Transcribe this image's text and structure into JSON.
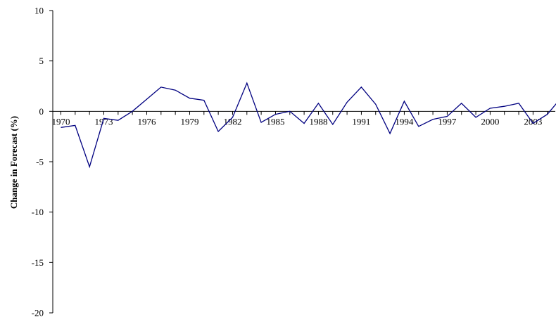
{
  "chart_data": {
    "type": "line",
    "title": "",
    "xlabel": "",
    "ylabel": "Change in Forecast (%)",
    "ylim": [
      -20,
      10
    ],
    "yticks": [
      10,
      5,
      0,
      -5,
      -10,
      -15,
      -20
    ],
    "xlim": [
      1970,
      2005
    ],
    "xtick_labels": [
      "1970",
      "1973",
      "1976",
      "1979",
      "1982",
      "1985",
      "1988",
      "1991",
      "1994",
      "1997",
      "2000",
      "2003"
    ],
    "grid": false,
    "series": [
      {
        "color": "#000080",
        "x": [
          1970,
          1971,
          1972,
          1973,
          1974,
          1975,
          1976,
          1977,
          1978,
          1979,
          1980,
          1981,
          1982,
          1983,
          1984,
          1985,
          1986,
          1987,
          1988,
          1989,
          1990,
          1991,
          1992,
          1993,
          1994,
          1995,
          1996,
          1997,
          1998,
          1999,
          2000,
          2001,
          2002,
          2003,
          2004,
          2005
        ],
        "values": [
          -1.6,
          -1.4,
          -5.5,
          -0.7,
          -0.9,
          0.0,
          1.2,
          2.4,
          2.1,
          1.3,
          1.1,
          -2.0,
          -0.6,
          2.8,
          -1.1,
          -0.3,
          0.0,
          -1.2,
          0.8,
          -1.3,
          0.9,
          2.4,
          0.7,
          -2.2,
          1.0,
          -1.5,
          -0.8,
          -0.5,
          0.8,
          -0.6,
          0.3,
          0.5,
          0.8,
          -1.2,
          -0.3,
          1.4
        ]
      }
    ]
  }
}
